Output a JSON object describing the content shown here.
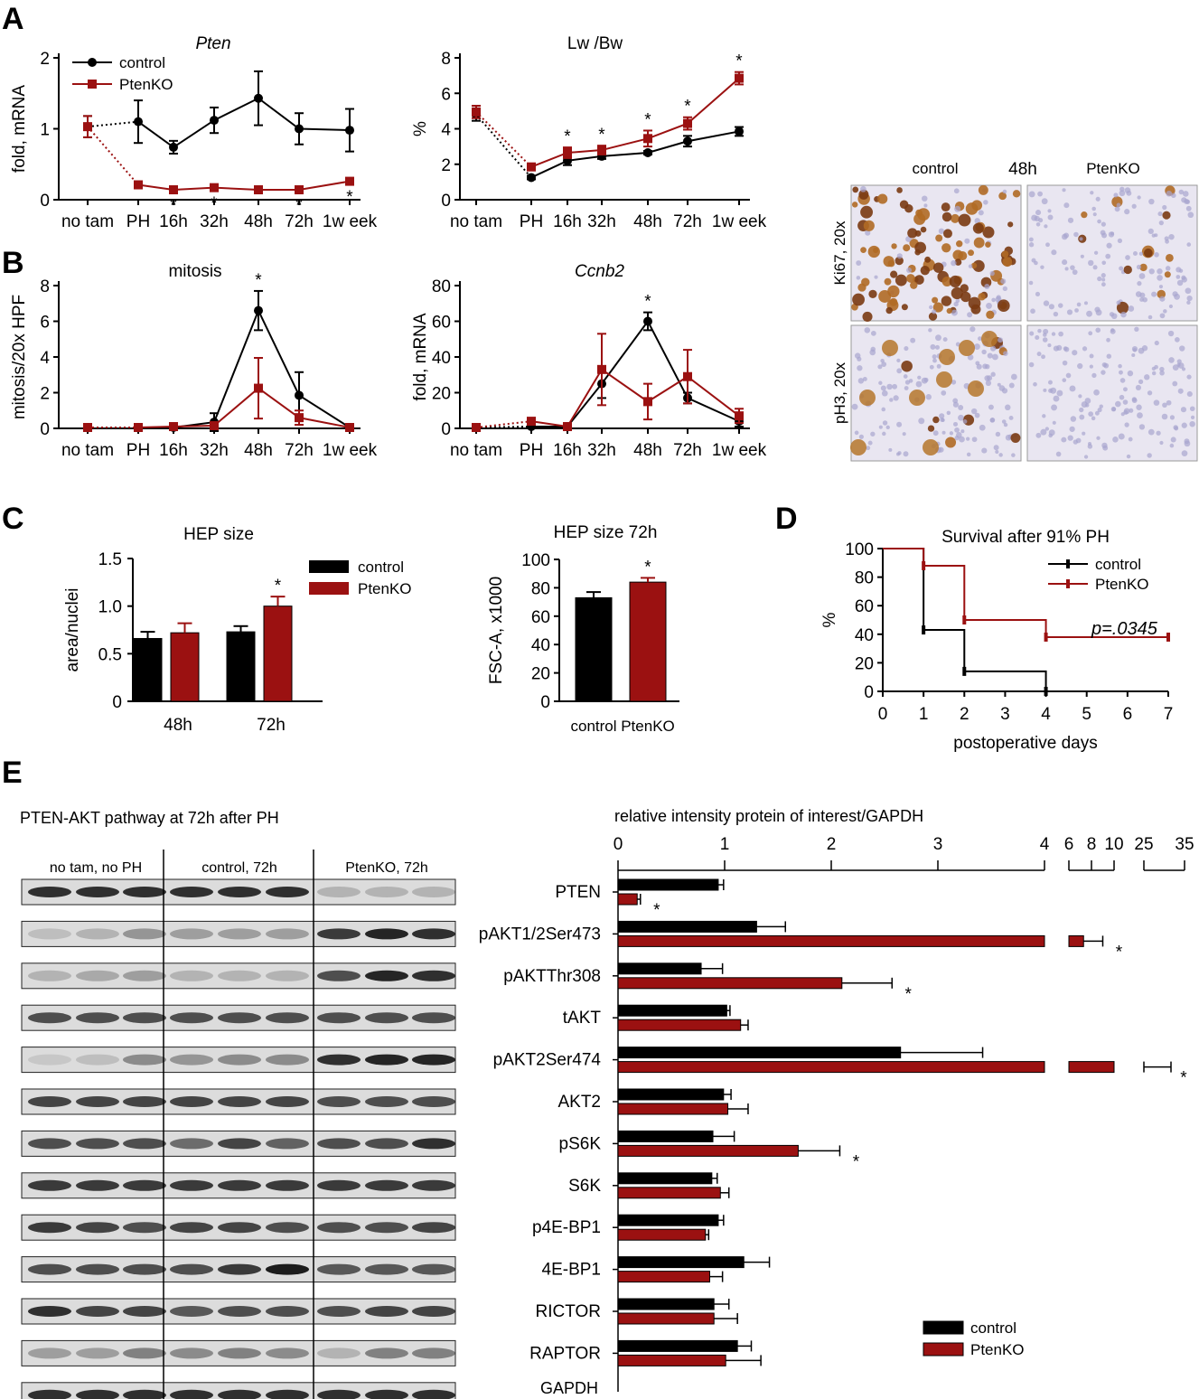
{
  "colors": {
    "control": "#000000",
    "ptenko": "#9b1111",
    "blot_bg": "#dcdcdc",
    "ihc_bg": "#e9e6f1"
  },
  "panel_letters": {
    "a": "A",
    "b": "B",
    "c": "C",
    "d": "D",
    "e": "E"
  },
  "star": "*",
  "timepoints": [
    "no tam",
    "PH",
    "16h",
    "32h",
    "48h",
    "72h",
    "1w eek"
  ],
  "ihc": {
    "col_control": "control",
    "col_time": "48h",
    "col_ptenko": "PtenKO",
    "row1": "Ki67, 20x",
    "row2": "pH3, 20x"
  },
  "blot": {
    "title": "PTEN-AKT pathway at 72h after PH",
    "groups": [
      "no tam, no PH",
      "control, 72h",
      "PtenKO, 72h"
    ],
    "gapdh_label": "GAPDH",
    "lane_intensity": [
      [
        0.85,
        0.85,
        0.85,
        0.85,
        0.85,
        0.85,
        0.2,
        0.2,
        0.2
      ],
      [
        0.15,
        0.2,
        0.35,
        0.3,
        0.3,
        0.3,
        0.8,
        0.9,
        0.85
      ],
      [
        0.2,
        0.25,
        0.3,
        0.2,
        0.2,
        0.2,
        0.7,
        0.9,
        0.85
      ],
      [
        0.7,
        0.7,
        0.7,
        0.7,
        0.7,
        0.7,
        0.7,
        0.7,
        0.7
      ],
      [
        0.1,
        0.15,
        0.4,
        0.35,
        0.4,
        0.4,
        0.85,
        0.9,
        0.9
      ],
      [
        0.75,
        0.75,
        0.75,
        0.75,
        0.75,
        0.75,
        0.7,
        0.7,
        0.7
      ],
      [
        0.7,
        0.7,
        0.7,
        0.55,
        0.75,
        0.6,
        0.7,
        0.7,
        0.85
      ],
      [
        0.8,
        0.8,
        0.8,
        0.8,
        0.8,
        0.8,
        0.8,
        0.8,
        0.8
      ],
      [
        0.8,
        0.75,
        0.7,
        0.75,
        0.75,
        0.7,
        0.7,
        0.7,
        0.75
      ],
      [
        0.7,
        0.7,
        0.7,
        0.7,
        0.8,
        0.95,
        0.65,
        0.65,
        0.65
      ],
      [
        0.85,
        0.75,
        0.75,
        0.65,
        0.7,
        0.7,
        0.7,
        0.75,
        0.75
      ],
      [
        0.3,
        0.3,
        0.45,
        0.4,
        0.45,
        0.4,
        0.2,
        0.45,
        0.45
      ],
      [
        0.85,
        0.85,
        0.85,
        0.85,
        0.85,
        0.85,
        0.85,
        0.85,
        0.85
      ]
    ]
  },
  "chart_data": [
    {
      "id": "A1",
      "type": "line",
      "title": "Pten",
      "ylabel": "fold, mRNA",
      "ylim": [
        0,
        2
      ],
      "yticks": [
        0,
        1,
        2
      ],
      "categories": [
        "no tam",
        "PH",
        "16h",
        "32h",
        "48h",
        "72h",
        "1w eek"
      ],
      "legend": "top-left",
      "series": [
        {
          "name": "control",
          "values": [
            1.03,
            1.1,
            0.74,
            1.12,
            1.43,
            1.0,
            0.98
          ],
          "errors": [
            0.15,
            0.3,
            0.09,
            0.18,
            0.38,
            0.22,
            0.3
          ]
        },
        {
          "name": "PtenKO",
          "values": [
            1.03,
            0.21,
            0.14,
            0.17,
            0.14,
            0.14,
            0.26
          ],
          "errors": [
            0.15,
            0.02,
            0.02,
            0.02,
            0.01,
            0.02,
            0.02
          ]
        }
      ],
      "significant": [
        "16h",
        "32h",
        "72h",
        "1w eek"
      ]
    },
    {
      "id": "A2",
      "type": "line",
      "title": "Lw /Bw",
      "ylabel": "%",
      "ylim": [
        0,
        8
      ],
      "yticks": [
        0,
        2,
        4,
        6,
        8
      ],
      "categories": [
        "no tam",
        "PH",
        "16h",
        "32h",
        "48h",
        "72h",
        "1w eek"
      ],
      "series": [
        {
          "name": "control",
          "values": [
            4.8,
            1.25,
            2.2,
            2.45,
            2.65,
            3.3,
            3.85
          ],
          "errors": [
            0.35,
            0.1,
            0.25,
            0.15,
            0.1,
            0.3,
            0.25
          ]
        },
        {
          "name": "PtenKO",
          "values": [
            4.95,
            1.85,
            2.65,
            2.8,
            3.45,
            4.3,
            6.85
          ],
          "errors": [
            0.35,
            0.1,
            0.3,
            0.25,
            0.45,
            0.35,
            0.35
          ]
        }
      ],
      "significant": [
        "16h",
        "32h",
        "48h",
        "72h",
        "1w eek"
      ]
    },
    {
      "id": "B1",
      "type": "line",
      "title": "mitosis",
      "ylabel": "mitosis/20x HPF",
      "ylim": [
        0,
        8
      ],
      "yticks": [
        0,
        2,
        4,
        6,
        8
      ],
      "categories": [
        "no tam",
        "PH",
        "16h",
        "32h",
        "48h",
        "72h",
        "1w eek"
      ],
      "series": [
        {
          "name": "control",
          "values": [
            0.05,
            0.05,
            0.05,
            0.35,
            6.6,
            1.85,
            0.05
          ],
          "errors": [
            0.05,
            0.05,
            0.05,
            0.5,
            1.1,
            1.3,
            0.05
          ]
        },
        {
          "name": "PtenKO",
          "values": [
            0.05,
            0.05,
            0.1,
            0.15,
            2.25,
            0.6,
            0.05
          ],
          "errors": [
            0.05,
            0.05,
            0.05,
            0.1,
            1.7,
            0.4,
            0.05
          ]
        }
      ],
      "significant": [
        "48h"
      ]
    },
    {
      "id": "B2",
      "type": "line",
      "title": "Ccnb2",
      "ylabel": "fold, mRNA",
      "ylim": [
        0,
        80
      ],
      "yticks": [
        0,
        20,
        40,
        60,
        80
      ],
      "categories": [
        "no tam",
        "PH",
        "16h",
        "32h",
        "48h",
        "72h",
        "1w eek"
      ],
      "series": [
        {
          "name": "control",
          "values": [
            0.5,
            1,
            1,
            25,
            60,
            17,
            4
          ],
          "errors": [
            0.5,
            0.5,
            0.5,
            8,
            5,
            3,
            3
          ]
        },
        {
          "name": "PtenKO",
          "values": [
            0.5,
            4,
            1,
            33,
            15,
            29,
            7
          ],
          "errors": [
            0.5,
            1,
            0.5,
            20,
            10,
            15,
            4
          ]
        }
      ],
      "significant": [
        "48h"
      ]
    },
    {
      "id": "C1",
      "type": "bar",
      "title": "HEP size",
      "ylabel": "area/nuclei",
      "ylim": [
        0,
        1.5
      ],
      "yticks": [
        "0",
        "0.5",
        "1.0",
        "1.5"
      ],
      "categories": [
        "48h",
        "72h"
      ],
      "legend": "top-right",
      "series": [
        {
          "name": "control",
          "values": [
            0.66,
            0.73
          ],
          "errors": [
            0.07,
            0.06
          ]
        },
        {
          "name": "PtenKO",
          "values": [
            0.72,
            1.0
          ],
          "errors": [
            0.1,
            0.1
          ]
        }
      ],
      "significant": [
        "72h"
      ]
    },
    {
      "id": "C2",
      "type": "bar",
      "title": "HEP   size 72h",
      "ylabel": "FSC-A, x1000",
      "ylim": [
        0,
        100
      ],
      "yticks": [
        0,
        20,
        40,
        60,
        80,
        100
      ],
      "categories": [
        "control",
        "PtenKO"
      ],
      "values": [
        73,
        84
      ],
      "errors": [
        4,
        3
      ],
      "significant": [
        "PtenKO"
      ]
    },
    {
      "id": "D",
      "type": "line",
      "step": true,
      "title": "Survival after 91% PH",
      "xlabel": "postoperative days",
      "ylabel": "%",
      "xlim": [
        0,
        7
      ],
      "ylim": [
        0,
        100
      ],
      "xticks": [
        0,
        1,
        2,
        3,
        4,
        5,
        6,
        7
      ],
      "yticks": [
        0,
        20,
        40,
        60,
        80,
        100
      ],
      "annotation": "p=.0345",
      "legend": "top-right",
      "series": [
        {
          "name": "control",
          "x": [
            0,
            1,
            2,
            4
          ],
          "y": [
            100,
            43,
            14,
            0
          ],
          "censor_x": [
            1,
            2,
            4
          ],
          "censor_y": [
            43,
            14,
            0
          ]
        },
        {
          "name": "PtenKO",
          "x": [
            0,
            1,
            2,
            4,
            7
          ],
          "y": [
            100,
            88,
            50,
            38,
            38
          ],
          "censor_x": [
            1,
            2,
            4,
            7
          ],
          "censor_y": [
            88,
            50,
            38,
            38
          ]
        }
      ]
    },
    {
      "id": "E",
      "type": "bar",
      "orientation": "horizontal",
      "title": "relative intensity protein of interest/GAPDH",
      "xticks": [
        "0",
        "1",
        "2",
        "3",
        "4",
        "6",
        "8",
        "10",
        "25",
        "35"
      ],
      "categories": [
        "PTEN",
        "pAKT1/2Ser473",
        "pAKTThr308",
        "tAKT",
        "pAKT2Ser474",
        "AKT2",
        "pS6K",
        "S6K",
        "p4E-BP1",
        "4E-BP1",
        "RICTOR",
        "RAPTOR"
      ],
      "legend": "bottom-right",
      "series": [
        {
          "name": "control",
          "values": [
            0.94,
            1.3,
            0.78,
            1.02,
            2.65,
            0.99,
            0.89,
            0.88,
            0.94,
            1.18,
            0.9,
            1.12
          ],
          "errors": [
            0.05,
            0.27,
            0.2,
            0.03,
            0.77,
            0.07,
            0.2,
            0.05,
            0.05,
            0.24,
            0.14,
            0.13
          ]
        },
        {
          "name": "PtenKO",
          "values": [
            0.18,
            7.3,
            2.1,
            1.15,
            10,
            1.03,
            1.69,
            0.96,
            0.82,
            0.86,
            0.9,
            1.01
          ],
          "errors": [
            0.03,
            1.7,
            0.47,
            0.07,
            3.5,
            0.19,
            0.39,
            0.08,
            0.03,
            0.12,
            0.22,
            0.33
          ]
        }
      ],
      "significant": [
        "PTEN",
        "pAKT1/2Ser473",
        "pAKTThr308",
        "pAKT2Ser474",
        "pS6K"
      ]
    }
  ]
}
